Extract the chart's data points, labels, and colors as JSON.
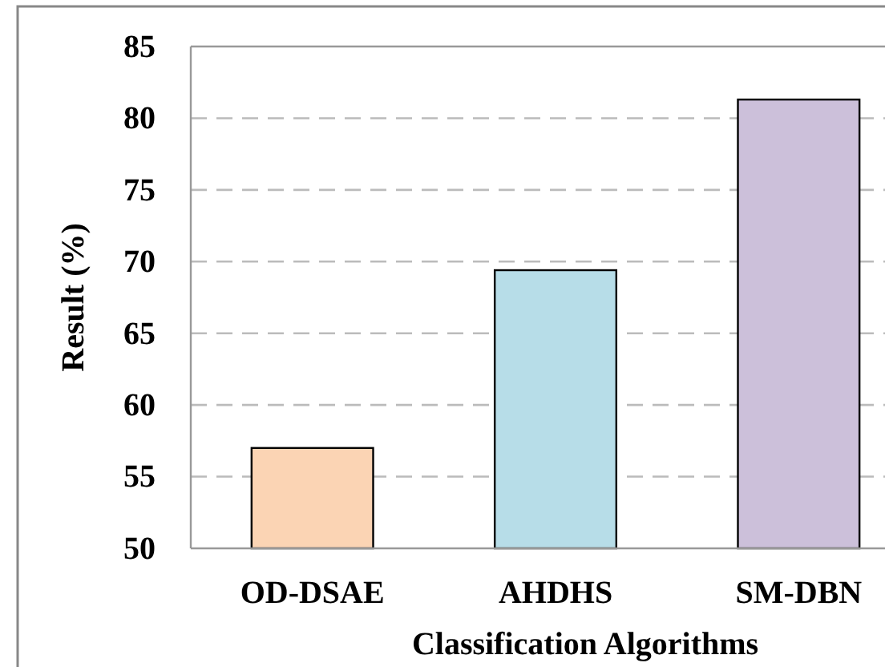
{
  "chart_data": {
    "type": "bar",
    "xlabel": "Classification Algorithms",
    "ylabel": "Result (%)",
    "categories": [
      "OD-DSAE",
      "AHDHS",
      "SM-DBN"
    ],
    "values": [
      57.0,
      69.4,
      81.3
    ],
    "colors": [
      "#fbd4b4",
      "#b7dde8",
      "#ccc0da"
    ],
    "ylim": [
      50,
      85
    ],
    "yticks": [
      50,
      55,
      60,
      65,
      70,
      75,
      80,
      85
    ],
    "grid": "y"
  }
}
